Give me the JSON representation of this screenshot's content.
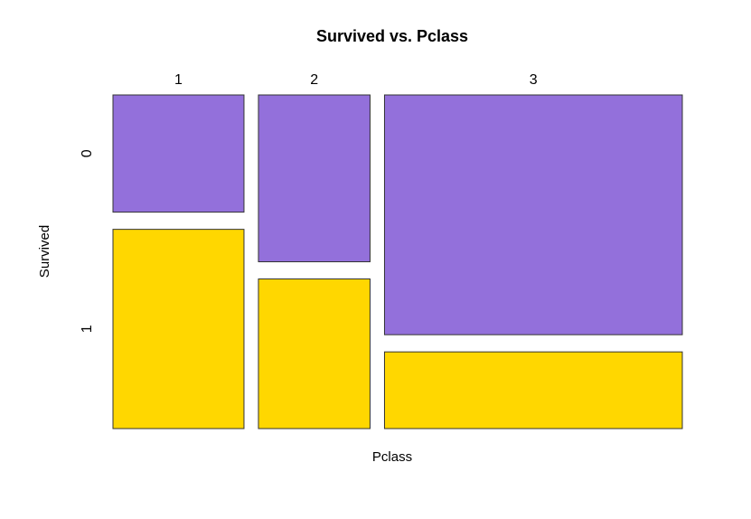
{
  "chart_data": {
    "type": "mosaic",
    "title": "Survived vs. Pclass",
    "x_label": "Pclass",
    "y_label": "Survived",
    "categories": [
      "1",
      "2",
      "3"
    ],
    "series": [
      {
        "name": "0",
        "color": "#9370db",
        "values": [
          80,
          97,
          372
        ]
      },
      {
        "name": "1",
        "color": "#ffd700",
        "values": [
          136,
          87,
          119
        ]
      }
    ]
  }
}
